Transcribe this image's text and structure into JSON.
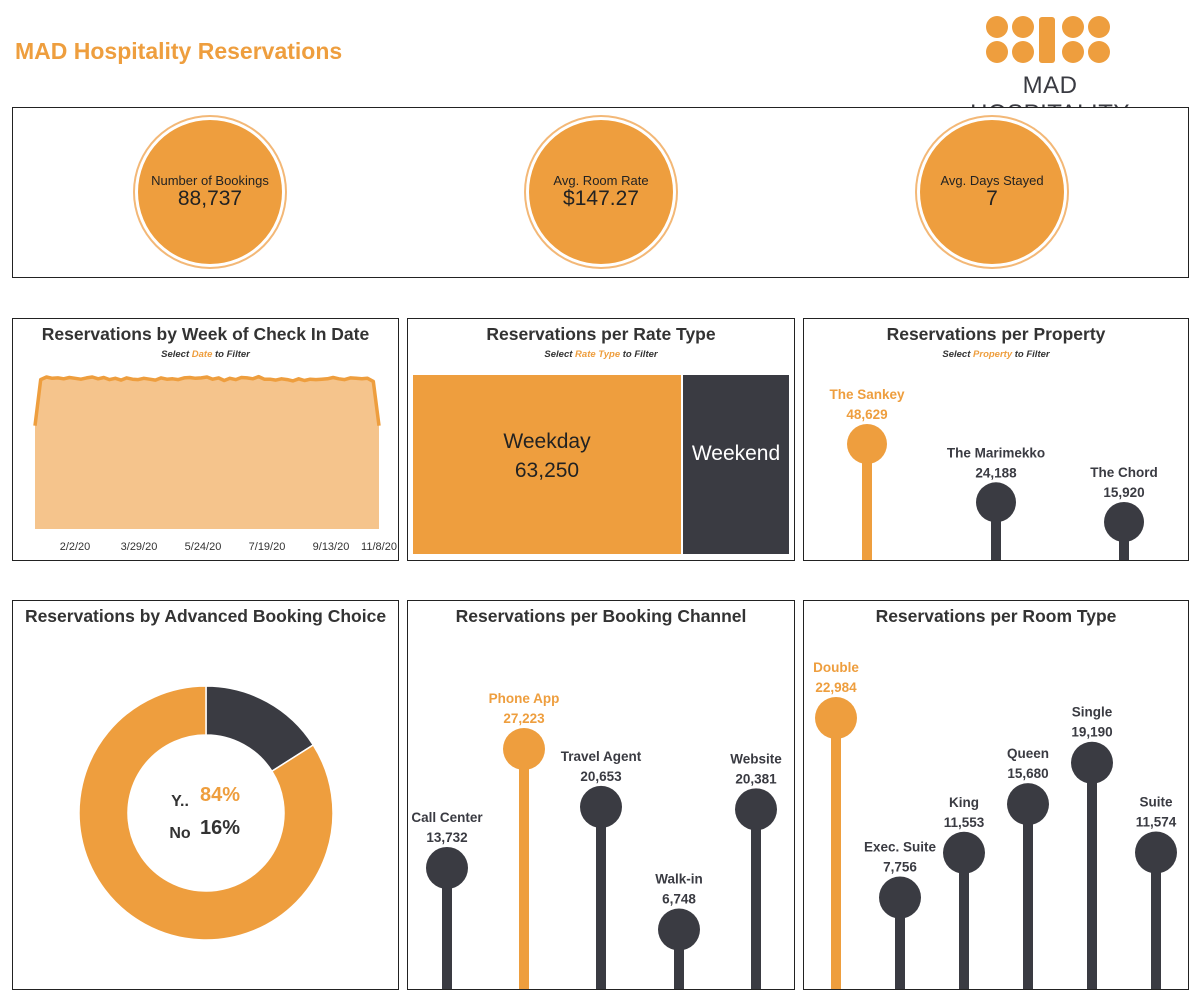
{
  "header": {
    "title": "MAD Hospitality Reservations",
    "logo_text": "MAD HOSPITALITY"
  },
  "colors": {
    "orange": "#EE9E3E",
    "orange_light": "#F5C48C",
    "dark": "#3A3B42"
  },
  "kpis": [
    {
      "label": "Number of Bookings",
      "value": "88,737"
    },
    {
      "label": "Avg. Room Rate",
      "value": "$147.27"
    },
    {
      "label": "Avg. Days Stayed",
      "value": "7"
    }
  ],
  "charts": {
    "week": {
      "title": "Reservations by Week of Check In Date",
      "sub_pre": "Select",
      "sub_hl": "Date",
      "sub_post": "to Filter"
    },
    "rate": {
      "title": "Reservations per Rate Type",
      "sub_pre": "Select",
      "sub_hl": "Rate Type",
      "sub_post": "to Filter"
    },
    "property": {
      "title": "Reservations per Property",
      "sub_pre": "Select",
      "sub_hl": "Property",
      "sub_post": "to Filter"
    },
    "advance": {
      "title": "Reservations by Advanced Booking Choice"
    },
    "channel": {
      "title": "Reservations per Booking Channel"
    },
    "room": {
      "title": "Reservations per Room Type"
    }
  },
  "chart_data": [
    {
      "type": "area",
      "title": "Reservations by Week of Check In Date",
      "x_tick_labels": [
        "2/2/20",
        "3/29/20",
        "5/24/20",
        "7/19/20",
        "9/13/20",
        "11/8/20"
      ],
      "y": [
        1190,
        1720,
        1750,
        1735,
        1740,
        1730,
        1745,
        1735,
        1725,
        1740,
        1750,
        1730,
        1745,
        1720,
        1735,
        1715,
        1740,
        1725,
        1720,
        1735,
        1725,
        1715,
        1740,
        1725,
        1730,
        1720,
        1740,
        1745,
        1735,
        1740,
        1750,
        1725,
        1740,
        1710,
        1735,
        1720,
        1745,
        1740,
        1730,
        1755,
        1725,
        1725,
        1715,
        1730,
        1720,
        1705,
        1730,
        1710,
        1725,
        1720,
        1725,
        1730,
        1745,
        1730,
        1720,
        1740,
        1735,
        1730,
        1735,
        1700,
        1190
      ],
      "ylim": [
        0,
        1900
      ]
    },
    {
      "type": "bar",
      "title": "Reservations per Rate Type",
      "categories": [
        "Weekday",
        "Weekend"
      ],
      "values": [
        63250,
        25487
      ],
      "value_labels": [
        "63,250",
        ""
      ]
    },
    {
      "type": "bar",
      "title": "Reservations per Property",
      "categories": [
        "The Sankey",
        "The Marimekko",
        "The Chord"
      ],
      "values": [
        48629,
        24188,
        15920
      ],
      "value_labels": [
        "48,629",
        "24,188",
        "15,920"
      ],
      "highlight_index": 0,
      "ylim": [
        0,
        48629
      ]
    },
    {
      "type": "pie",
      "title": "Reservations by Advanced Booking Choice",
      "categories": [
        "Y..",
        "No"
      ],
      "values": [
        84,
        16
      ],
      "value_labels": [
        "84%",
        "16%"
      ],
      "highlight_index": 0
    },
    {
      "type": "bar",
      "title": "Reservations per Booking Channel",
      "categories": [
        "Call Center",
        "Phone App",
        "Travel Agent",
        "Walk-in",
        "Website"
      ],
      "values": [
        13732,
        27223,
        20653,
        6748,
        20381
      ],
      "value_labels": [
        "13,732",
        "27,223",
        "20,653",
        "6,748",
        "20,381"
      ],
      "highlight_index": 1,
      "ylim": [
        0,
        27223
      ]
    },
    {
      "type": "bar",
      "title": "Reservations per Room Type",
      "categories": [
        "Double",
        "Exec. Suite",
        "King",
        "Queen",
        "Single",
        "Suite"
      ],
      "values": [
        22984,
        7756,
        11553,
        15680,
        19190,
        11574
      ],
      "value_labels": [
        "22,984",
        "7,756",
        "11,553",
        "15,680",
        "19,190",
        "11,574"
      ],
      "highlight_index": 0,
      "ylim": [
        0,
        22984
      ]
    }
  ]
}
